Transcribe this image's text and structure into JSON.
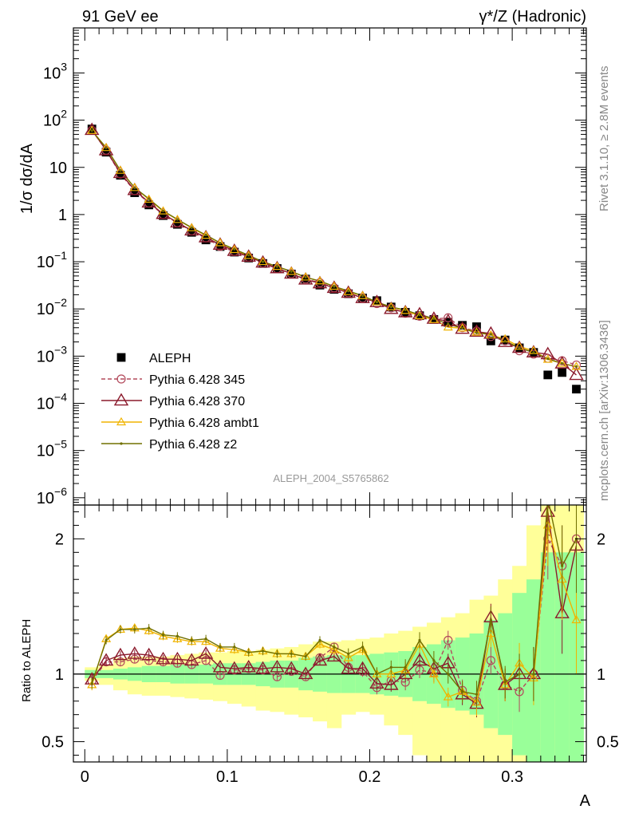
{
  "header": {
    "left": "91 GeV ee",
    "right": "γ*/Z (Hadronic)"
  },
  "side_labels": {
    "rivet": "Rivet 3.1.10, ≥ 2.8M events",
    "mcplots": "mcplots.cern.ch [arXiv:1306.3436]"
  },
  "analysis_id": "ALEPH_2004_S5765862",
  "colors": {
    "data": "#000000",
    "p345": "#b34a5c",
    "p370": "#8b1a2c",
    "ambt1": "#f0b400",
    "z2": "#707000",
    "band_yellow": "#ffff99",
    "band_green": "#99ff99"
  },
  "legend": [
    {
      "key": "data",
      "label": "ALEPH",
      "marker": "square"
    },
    {
      "key": "p345",
      "label": "Pythia 6.428 345",
      "marker": "circle",
      "dashed": true
    },
    {
      "key": "p370",
      "label": "Pythia 6.428 370",
      "marker": "triangle"
    },
    {
      "key": "ambt1",
      "label": "Pythia 6.428 ambt1",
      "marker": "triangle-small"
    },
    {
      "key": "z2",
      "label": "Pythia 6.428 z2",
      "marker": "dot"
    }
  ],
  "chart_data": [
    {
      "type": "line",
      "ylabel": "1/σ  dσ/dA",
      "yscale": "log",
      "ylim": [
        7e-07,
        9000
      ],
      "xlim": [
        -0.008,
        0.352
      ],
      "yticks": [
        {
          "v": 1e-06,
          "base": "10",
          "exp": "−6"
        },
        {
          "v": 1e-05,
          "base": "10",
          "exp": "−5"
        },
        {
          "v": 0.0001,
          "base": "10",
          "exp": "−4"
        },
        {
          "v": 0.001,
          "base": "10",
          "exp": "−3"
        },
        {
          "v": 0.01,
          "base": "10",
          "exp": "−2"
        },
        {
          "v": 0.1,
          "base": "10",
          "exp": "−1"
        },
        {
          "v": 1,
          "base": "1",
          "exp": ""
        },
        {
          "v": 10,
          "base": "10",
          "exp": ""
        },
        {
          "v": 100,
          "base": "10",
          "exp": "2"
        },
        {
          "v": 1000,
          "base": "10",
          "exp": "3"
        }
      ],
      "x": [
        0.005,
        0.015,
        0.025,
        0.035,
        0.045,
        0.055,
        0.065,
        0.075,
        0.085,
        0.095,
        0.105,
        0.115,
        0.125,
        0.135,
        0.145,
        0.155,
        0.165,
        0.175,
        0.185,
        0.195,
        0.205,
        0.215,
        0.225,
        0.235,
        0.245,
        0.255,
        0.265,
        0.275,
        0.285,
        0.295,
        0.305,
        0.315,
        0.325,
        0.335,
        0.345
      ],
      "series": [
        {
          "name": "ALEPH",
          "key": "data",
          "values": [
            65,
            21,
            6.8,
            2.9,
            1.6,
            0.95,
            0.62,
            0.42,
            0.29,
            0.21,
            0.16,
            0.12,
            0.092,
            0.072,
            0.055,
            0.043,
            0.032,
            0.026,
            0.021,
            0.017,
            0.015,
            0.011,
            0.0085,
            0.0072,
            0.006,
            0.0052,
            0.0045,
            0.0042,
            0.0021,
            0.0022,
            0.0015,
            0.0012,
            0.0004,
            0.00045,
            0.0002
          ]
        },
        {
          "name": "Pythia 6.428 345",
          "key": "p345",
          "values": [
            61,
            23,
            7.2,
            3.2,
            1.75,
            1.0,
            0.67,
            0.45,
            0.32,
            0.21,
            0.165,
            0.125,
            0.094,
            0.071,
            0.056,
            0.043,
            0.036,
            0.028,
            0.022,
            0.017,
            0.013,
            0.0105,
            0.0081,
            0.007,
            0.0061,
            0.0065,
            0.004,
            0.0034,
            0.0026,
            0.0021,
            0.0013,
            0.0011,
            0.0009,
            0.0008,
            0.00065
          ]
        },
        {
          "name": "Pythia 6.428 370",
          "key": "p370",
          "values": [
            62,
            23,
            7.6,
            3.3,
            1.8,
            1.03,
            0.68,
            0.46,
            0.33,
            0.23,
            0.17,
            0.128,
            0.096,
            0.073,
            0.056,
            0.042,
            0.035,
            0.028,
            0.022,
            0.017,
            0.014,
            0.01,
            0.0085,
            0.0077,
            0.0062,
            0.0055,
            0.0038,
            0.0033,
            0.003,
            0.002,
            0.0015,
            0.0012,
            0.0011,
            0.0007,
            0.0004
          ]
        },
        {
          "name": "Pythia 6.428 ambt1",
          "key": "ambt1",
          "values": [
            60,
            26,
            8.6,
            3.7,
            2.1,
            1.18,
            0.78,
            0.52,
            0.36,
            0.25,
            0.18,
            0.135,
            0.1,
            0.079,
            0.062,
            0.047,
            0.039,
            0.03,
            0.023,
            0.019,
            0.014,
            0.011,
            0.0092,
            0.0071,
            0.0059,
            0.0041,
            0.0039,
            0.0032,
            0.0028,
            0.0023,
            0.0016,
            0.0013,
            0.00085,
            0.0007,
            0.0006
          ]
        },
        {
          "name": "Pythia 6.428 z2",
          "key": "z2",
          "values": [
            60,
            26,
            8.6,
            3.7,
            2.15,
            1.2,
            0.79,
            0.53,
            0.37,
            0.25,
            0.185,
            0.137,
            0.1,
            0.079,
            0.062,
            0.047,
            0.039,
            0.03,
            0.024,
            0.019,
            0.014,
            0.011,
            0.0095,
            0.0075,
            0.0062,
            0.0048,
            0.0039,
            0.0031,
            0.0029,
            0.0021,
            0.0015,
            0.0012,
            0.00088,
            0.0007,
            0.0006
          ]
        }
      ]
    },
    {
      "type": "line",
      "ylabel": "Ratio to ALEPH",
      "xlabel": "A",
      "ylim": [
        0.35,
        2.25
      ],
      "xlim": [
        -0.008,
        0.352
      ],
      "xticks": [
        {
          "v": 0,
          "label": "0"
        },
        {
          "v": 0.1,
          "label": "0.1"
        },
        {
          "v": 0.2,
          "label": "0.2"
        },
        {
          "v": 0.3,
          "label": "0.3"
        }
      ],
      "yticks": [
        {
          "v": 0.5,
          "label": "0.5"
        },
        {
          "v": 1,
          "label": "1"
        },
        {
          "v": 2,
          "label": "2"
        }
      ],
      "x": [
        0.005,
        0.015,
        0.025,
        0.035,
        0.045,
        0.055,
        0.065,
        0.075,
        0.085,
        0.095,
        0.105,
        0.115,
        0.125,
        0.135,
        0.145,
        0.155,
        0.165,
        0.175,
        0.185,
        0.195,
        0.205,
        0.215,
        0.225,
        0.235,
        0.245,
        0.255,
        0.265,
        0.275,
        0.285,
        0.295,
        0.305,
        0.315,
        0.325,
        0.335,
        0.345
      ],
      "band_green": [
        [
          0.97,
          1.03
        ],
        [
          0.97,
          1.03
        ],
        [
          0.96,
          1.04
        ],
        [
          0.95,
          1.05
        ],
        [
          0.94,
          1.06
        ],
        [
          0.94,
          1.06
        ],
        [
          0.93,
          1.07
        ],
        [
          0.93,
          1.07
        ],
        [
          0.93,
          1.07
        ],
        [
          0.92,
          1.08
        ],
        [
          0.92,
          1.08
        ],
        [
          0.92,
          1.08
        ],
        [
          0.91,
          1.09
        ],
        [
          0.9,
          1.1
        ],
        [
          0.9,
          1.1
        ],
        [
          0.88,
          1.12
        ],
        [
          0.87,
          1.13
        ],
        [
          0.86,
          1.14
        ],
        [
          0.86,
          1.14
        ],
        [
          0.86,
          1.14
        ],
        [
          0.85,
          1.15
        ],
        [
          0.84,
          1.16
        ],
        [
          0.83,
          1.17
        ],
        [
          0.8,
          1.2
        ],
        [
          0.78,
          1.22
        ],
        [
          0.75,
          1.25
        ],
        [
          0.73,
          1.27
        ],
        [
          0.7,
          1.3
        ],
        [
          0.6,
          1.4
        ],
        [
          0.55,
          1.45
        ],
        [
          0.4,
          1.6
        ],
        [
          0.3,
          1.7
        ],
        [
          0.2,
          1.9
        ],
        [
          0.2,
          1.9
        ],
        [
          0.2,
          1.9
        ]
      ],
      "band_yellow": [
        [
          0.95,
          1.05
        ],
        [
          0.92,
          1.07
        ],
        [
          0.88,
          1.12
        ],
        [
          0.85,
          1.13
        ],
        [
          0.84,
          1.13
        ],
        [
          0.84,
          1.13
        ],
        [
          0.83,
          1.14
        ],
        [
          0.82,
          1.15
        ],
        [
          0.81,
          1.16
        ],
        [
          0.8,
          1.16
        ],
        [
          0.78,
          1.17
        ],
        [
          0.76,
          1.17
        ],
        [
          0.73,
          1.18
        ],
        [
          0.72,
          1.19
        ],
        [
          0.7,
          1.2
        ],
        [
          0.68,
          1.22
        ],
        [
          0.65,
          1.24
        ],
        [
          0.6,
          1.24
        ],
        [
          0.7,
          1.25
        ],
        [
          0.72,
          1.26
        ],
        [
          0.7,
          1.27
        ],
        [
          0.62,
          1.3
        ],
        [
          0.55,
          1.32
        ],
        [
          0.4,
          1.35
        ],
        [
          0.35,
          1.38
        ],
        [
          0.3,
          1.42
        ],
        [
          0.3,
          1.45
        ],
        [
          0.3,
          1.55
        ],
        [
          0.3,
          1.58
        ],
        [
          0.3,
          1.7
        ],
        [
          0.35,
          1.8
        ],
        [
          0.3,
          2.1
        ],
        [
          0.3,
          2.25
        ],
        [
          0.35,
          2.25
        ],
        [
          0.35,
          2.25
        ]
      ],
      "series": [
        {
          "key": "p345",
          "values": [
            0.95,
            1.09,
            1.09,
            1.11,
            1.1,
            1.09,
            1.08,
            1.07,
            1.1,
            0.99,
            1.03,
            1.04,
            1.03,
            0.98,
            1.02,
            0.98,
            1.12,
            1.2,
            1.05,
            1.02,
            0.9,
            0.95,
            0.94,
            1.03,
            1.01,
            1.25,
            0.88,
            0.8,
            1.1,
            0.92,
            0.87,
            1.0,
            2.0,
            1.8,
            2.0
          ],
          "err": [
            0.04,
            0.03,
            0.03,
            0.03,
            0.03,
            0.03,
            0.03,
            0.03,
            0.03,
            0.03,
            0.03,
            0.03,
            0.03,
            0.03,
            0.03,
            0.03,
            0.03,
            0.03,
            0.04,
            0.04,
            0.05,
            0.05,
            0.06,
            0.06,
            0.07,
            0.07,
            0.08,
            0.1,
            0.1,
            0.12,
            0.15,
            0.2,
            0.3,
            0.3,
            0.4
          ]
        },
        {
          "key": "p370",
          "values": [
            0.96,
            1.1,
            1.14,
            1.15,
            1.14,
            1.11,
            1.11,
            1.1,
            1.15,
            1.05,
            1.04,
            1.05,
            1.04,
            1.05,
            1.04,
            1.0,
            1.1,
            1.13,
            1.04,
            1.04,
            0.93,
            0.92,
            1.0,
            1.1,
            1.04,
            1.08,
            0.85,
            0.78,
            1.42,
            0.92,
            1.0,
            1.0,
            2.2,
            1.45,
            1.95
          ],
          "err": [
            0.04,
            0.03,
            0.03,
            0.03,
            0.03,
            0.03,
            0.03,
            0.03,
            0.03,
            0.03,
            0.03,
            0.03,
            0.03,
            0.03,
            0.03,
            0.03,
            0.03,
            0.03,
            0.04,
            0.04,
            0.05,
            0.05,
            0.06,
            0.06,
            0.07,
            0.07,
            0.08,
            0.1,
            0.1,
            0.12,
            0.15,
            0.2,
            0.3,
            0.3,
            0.4
          ]
        },
        {
          "key": "ambt1",
          "values": [
            0.92,
            1.26,
            1.33,
            1.34,
            1.32,
            1.28,
            1.26,
            1.24,
            1.24,
            1.19,
            1.18,
            1.16,
            1.17,
            1.15,
            1.15,
            1.13,
            1.22,
            1.18,
            1.12,
            1.18,
            1.0,
            1.0,
            1.03,
            1.22,
            1.0,
            0.83,
            0.87,
            0.79,
            1.3,
            0.92,
            1.08,
            0.97,
            2.1,
            1.7,
            1.4
          ],
          "err": [
            0.04,
            0.03,
            0.03,
            0.03,
            0.03,
            0.03,
            0.03,
            0.03,
            0.03,
            0.03,
            0.03,
            0.03,
            0.03,
            0.03,
            0.03,
            0.03,
            0.03,
            0.03,
            0.04,
            0.04,
            0.05,
            0.05,
            0.06,
            0.06,
            0.07,
            0.07,
            0.08,
            0.1,
            0.1,
            0.12,
            0.15,
            0.2,
            0.3,
            0.3,
            0.4
          ]
        },
        {
          "key": "z2",
          "values": [
            0.93,
            1.25,
            1.33,
            1.33,
            1.34,
            1.29,
            1.28,
            1.25,
            1.26,
            1.2,
            1.2,
            1.16,
            1.17,
            1.15,
            1.15,
            1.13,
            1.25,
            1.2,
            1.15,
            1.2,
            1.0,
            1.05,
            1.05,
            1.25,
            1.1,
            1.0,
            0.87,
            0.85,
            1.4,
            0.94,
            1.0,
            1.0,
            2.3,
            1.8,
            2.0
          ],
          "err": [
            0.04,
            0.03,
            0.03,
            0.03,
            0.03,
            0.03,
            0.03,
            0.03,
            0.03,
            0.03,
            0.03,
            0.03,
            0.03,
            0.03,
            0.03,
            0.03,
            0.03,
            0.03,
            0.04,
            0.04,
            0.05,
            0.05,
            0.06,
            0.06,
            0.07,
            0.07,
            0.08,
            0.1,
            0.1,
            0.12,
            0.15,
            0.2,
            0.3,
            0.3,
            0.4
          ]
        }
      ]
    }
  ]
}
